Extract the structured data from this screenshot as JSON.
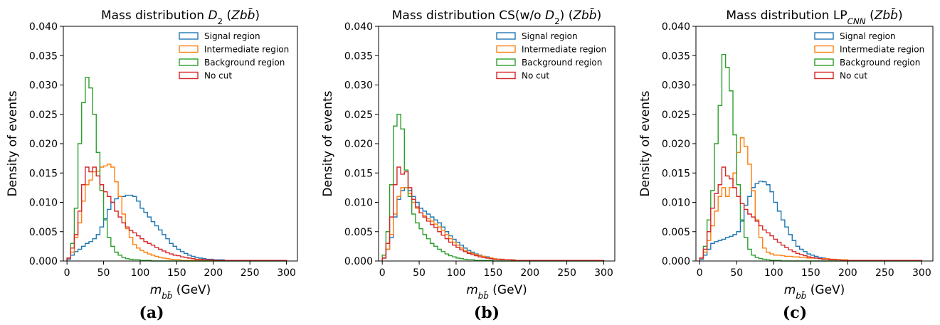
{
  "colors": {
    "signal": "#1f77b4",
    "intermediate": "#ff7f0e",
    "background": "#2ca02c",
    "nocut": "#d62728"
  },
  "chart_data": [
    {
      "type": "line",
      "title": "Mass distribution D₂ (Zbb̄)",
      "caption": "(a)",
      "xlabel": "m_bb̄ (GeV)",
      "ylabel": "Density of events",
      "xlim": [
        -5,
        315
      ],
      "ylim": [
        0,
        0.04
      ],
      "xticks": [
        "0",
        "50",
        "100",
        "150",
        "200",
        "250",
        "300"
      ],
      "yticks": [
        "0.000",
        "0.005",
        "0.010",
        "0.015",
        "0.020",
        "0.025",
        "0.030",
        "0.035",
        "0.040"
      ],
      "legend_position": "top-right",
      "grid": false,
      "bin_edges_start": 0,
      "bin_width": 5,
      "series": [
        {
          "name": "Signal region",
          "color_key": "signal",
          "values": [
            0.0003,
            0.001,
            0.0016,
            0.002,
            0.0025,
            0.003,
            0.0033,
            0.0038,
            0.0045,
            0.0058,
            0.0072,
            0.0088,
            0.01,
            0.0106,
            0.011,
            0.011,
            0.0112,
            0.0112,
            0.011,
            0.0102,
            0.009,
            0.0083,
            0.0075,
            0.0067,
            0.006,
            0.0053,
            0.0045,
            0.0038,
            0.003,
            0.0025,
            0.002,
            0.0016,
            0.0013,
            0.001,
            0.0008,
            0.0006,
            0.0005,
            0.0004,
            0.0003,
            0.0003,
            0.0002,
            0.0002,
            0.0002,
            0.0001,
            0.0001,
            0.0001,
            0.0001,
            0.0001,
            0.0001,
            0.0001,
            0.0001,
            0.0001,
            0.0001,
            0.0001,
            0.0001,
            0.0001,
            0.0001,
            0.0001,
            0.0001,
            0.0001
          ]
        },
        {
          "name": "Intermediate region",
          "color_key": "intermediate",
          "values": [
            0.0005,
            0.0015,
            0.004,
            0.0065,
            0.0102,
            0.013,
            0.0138,
            0.0152,
            0.0153,
            0.016,
            0.0162,
            0.0165,
            0.016,
            0.0135,
            0.011,
            0.008,
            0.0055,
            0.004,
            0.0028,
            0.0022,
            0.0018,
            0.0015,
            0.0012,
            0.001,
            0.0008,
            0.0006,
            0.0005,
            0.0004,
            0.0003,
            0.0002,
            0.0002,
            0.0001,
            0.0001,
            0.0001,
            0.0001,
            0.0001,
            0.0001,
            0.0001,
            0.0001,
            0.0001,
            0.0001,
            0.0001,
            0.0001,
            0.0001,
            0.0001,
            0.0001,
            0.0001,
            0.0001,
            0.0001,
            0.0001,
            0.0001,
            0.0001,
            0.0001,
            0.0001,
            0.0001,
            0.0001,
            0.0001,
            0.0001,
            0.0001,
            0.0001
          ]
        },
        {
          "name": "Background region",
          "color_key": "background",
          "values": [
            0.0005,
            0.003,
            0.009,
            0.02,
            0.027,
            0.0313,
            0.0295,
            0.025,
            0.0185,
            0.012,
            0.007,
            0.004,
            0.0025,
            0.0015,
            0.001,
            0.0006,
            0.0004,
            0.0003,
            0.0002,
            0.0002,
            0.0001,
            0.0001,
            0.0001,
            0,
            0,
            0,
            0,
            0,
            0,
            0,
            0,
            0,
            0,
            0,
            0,
            0,
            0,
            0,
            0,
            0,
            0,
            0,
            0,
            0,
            0,
            0,
            0,
            0,
            0,
            0,
            0,
            0,
            0,
            0,
            0,
            0,
            0,
            0,
            0,
            0
          ]
        },
        {
          "name": "No cut",
          "color_key": "nocut",
          "values": [
            0.0005,
            0.0022,
            0.0045,
            0.0085,
            0.013,
            0.016,
            0.0152,
            0.016,
            0.0145,
            0.013,
            0.0118,
            0.011,
            0.01,
            0.0085,
            0.0075,
            0.0065,
            0.0058,
            0.0052,
            0.0048,
            0.0043,
            0.0038,
            0.0033,
            0.003,
            0.0027,
            0.0023,
            0.002,
            0.0017,
            0.0014,
            0.0012,
            0.001,
            0.0009,
            0.0007,
            0.0006,
            0.0005,
            0.0004,
            0.0003,
            0.0003,
            0.0002,
            0.0002,
            0.0002,
            0.0001,
            0.0001,
            0.0001,
            0.0001,
            0.0001,
            0.0001,
            0.0001,
            0.0001,
            0.0001,
            0.0001,
            0.0001,
            0.0001,
            0.0001,
            0.0001,
            0.0001,
            0.0001,
            0.0001,
            0.0001,
            0.0001,
            0.0001
          ]
        }
      ]
    },
    {
      "type": "line",
      "title": "Mass distribution CS(w/o D₂) (Zbb̄)",
      "caption": "(b)",
      "xlabel": "m_bb̄ (GeV)",
      "ylabel": "Density of events",
      "xlim": [
        -5,
        315
      ],
      "ylim": [
        0,
        0.04
      ],
      "xticks": [
        "0",
        "50",
        "100",
        "150",
        "200",
        "250",
        "300"
      ],
      "yticks": [
        "0.000",
        "0.005",
        "0.010",
        "0.015",
        "0.020",
        "0.025",
        "0.030",
        "0.035",
        "0.040"
      ],
      "legend_position": "top-right",
      "grid": false,
      "bin_edges_start": 0,
      "bin_width": 5,
      "series": [
        {
          "name": "Signal region",
          "color_key": "signal",
          "values": [
            0.0005,
            0.002,
            0.004,
            0.0075,
            0.0105,
            0.012,
            0.0125,
            0.012,
            0.011,
            0.01,
            0.009,
            0.0085,
            0.008,
            0.0075,
            0.007,
            0.0065,
            0.0058,
            0.005,
            0.0043,
            0.0037,
            0.0032,
            0.0027,
            0.0022,
            0.0018,
            0.0015,
            0.0012,
            0.001,
            0.0008,
            0.0007,
            0.0005,
            0.0004,
            0.0003,
            0.0003,
            0.0002,
            0.0002,
            0.0002,
            0.0001,
            0.0001,
            0.0001,
            0.0001,
            0.0001,
            0.0001,
            0.0001,
            0.0001,
            0.0001,
            0.0001,
            0.0001,
            0.0001,
            0.0001,
            0.0001,
            0.0001,
            0.0001,
            0.0001,
            0.0001,
            0.0001,
            0.0001,
            0.0001,
            0.0001,
            0.0001,
            0.0001
          ]
        },
        {
          "name": "Intermediate region",
          "color_key": "intermediate",
          "values": [
            0.0005,
            0.002,
            0.0045,
            0.008,
            0.011,
            0.0125,
            0.0125,
            0.0115,
            0.01,
            0.009,
            0.0082,
            0.0077,
            0.0072,
            0.0068,
            0.0063,
            0.0058,
            0.0052,
            0.0045,
            0.0038,
            0.0032,
            0.0027,
            0.0022,
            0.0018,
            0.0015,
            0.0013,
            0.0011,
            0.0009,
            0.0008,
            0.0006,
            0.0005,
            0.0004,
            0.0003,
            0.0003,
            0.0002,
            0.0002,
            0.0002,
            0.0001,
            0.0001,
            0.0001,
            0.0001,
            0.0001,
            0.0001,
            0.0001,
            0.0001,
            0.0001,
            0.0001,
            0.0001,
            0.0001,
            0.0001,
            0.0001,
            0.0001,
            0.0001,
            0.0001,
            0.0001,
            0.0001,
            0.0001,
            0.0001,
            0.0001,
            0.0001,
            0.0001
          ]
        },
        {
          "name": "Background region",
          "color_key": "background",
          "values": [
            0.001,
            0.005,
            0.013,
            0.023,
            0.025,
            0.0225,
            0.0155,
            0.011,
            0.008,
            0.0065,
            0.0055,
            0.0045,
            0.0038,
            0.003,
            0.0025,
            0.002,
            0.0016,
            0.0012,
            0.0009,
            0.0007,
            0.0005,
            0.0004,
            0.0003,
            0.0002,
            0.0002,
            0.0001,
            0.0001,
            0.0001,
            0.0001,
            0.0001,
            0,
            0,
            0,
            0,
            0,
            0,
            0,
            0,
            0,
            0,
            0,
            0,
            0,
            0,
            0,
            0,
            0,
            0,
            0,
            0,
            0,
            0,
            0,
            0,
            0,
            0,
            0,
            0,
            0,
            0
          ]
        },
        {
          "name": "No cut",
          "color_key": "nocut",
          "values": [
            0.0005,
            0.003,
            0.0075,
            0.013,
            0.016,
            0.0148,
            0.0152,
            0.0125,
            0.0105,
            0.0092,
            0.0082,
            0.0075,
            0.0068,
            0.0062,
            0.0057,
            0.005,
            0.0044,
            0.0038,
            0.0032,
            0.0027,
            0.0023,
            0.0019,
            0.0016,
            0.0013,
            0.0011,
            0.0009,
            0.0007,
            0.0006,
            0.0005,
            0.0004,
            0.0003,
            0.0003,
            0.0002,
            0.0002,
            0.0002,
            0.0001,
            0.0001,
            0.0001,
            0.0001,
            0.0001,
            0.0001,
            0.0001,
            0.0001,
            0.0001,
            0.0001,
            0.0001,
            0.0001,
            0.0001,
            0.0001,
            0.0001,
            0.0001,
            0.0001,
            0.0001,
            0.0001,
            0.0001,
            0.0001,
            0.0001,
            0.0001,
            0.0001,
            0.0001
          ]
        }
      ]
    },
    {
      "type": "line",
      "title": "Mass distribution LP_CNN (Zbb̄)",
      "caption": "(c)",
      "xlabel": "m_bb̄ (GeV)",
      "ylabel": "Density of events",
      "xlim": [
        -5,
        315
      ],
      "ylim": [
        0,
        0.04
      ],
      "xticks": [
        "0",
        "50",
        "100",
        "150",
        "200",
        "250",
        "300"
      ],
      "yticks": [
        "0.000",
        "0.005",
        "0.010",
        "0.015",
        "0.020",
        "0.025",
        "0.030",
        "0.035",
        "0.040"
      ],
      "legend_position": "top-right",
      "grid": false,
      "bin_edges_start": 0,
      "bin_width": 5,
      "series": [
        {
          "name": "Signal region",
          "color_key": "signal",
          "values": [
            0.0003,
            0.001,
            0.002,
            0.003,
            0.0033,
            0.0035,
            0.0037,
            0.004,
            0.0042,
            0.0045,
            0.005,
            0.0068,
            0.0095,
            0.011,
            0.0125,
            0.0132,
            0.0136,
            0.0135,
            0.013,
            0.0118,
            0.01,
            0.0085,
            0.007,
            0.0058,
            0.0045,
            0.0035,
            0.0025,
            0.002,
            0.0016,
            0.0012,
            0.001,
            0.0008,
            0.0006,
            0.0005,
            0.0004,
            0.0003,
            0.0002,
            0.0002,
            0.0002,
            0.0001,
            0.0001,
            0.0001,
            0.0001,
            0.0001,
            0.0001,
            0.0001,
            0.0001,
            0.0001,
            0.0001,
            0.0001,
            0.0001,
            0.0001,
            0.0001,
            0.0001,
            0.0001,
            0.0001,
            0.0001,
            0.0001,
            0.0001,
            0.0001
          ]
        },
        {
          "name": "Intermediate region",
          "color_key": "intermediate",
          "values": [
            0.0005,
            0.0015,
            0.0035,
            0.006,
            0.0085,
            0.011,
            0.0125,
            0.011,
            0.0125,
            0.015,
            0.0185,
            0.021,
            0.0195,
            0.0165,
            0.012,
            0.007,
            0.004,
            0.0022,
            0.0015,
            0.0012,
            0.001,
            0.001,
            0.0009,
            0.0008,
            0.0008,
            0.0007,
            0.0007,
            0.0006,
            0.0006,
            0.0005,
            0.0005,
            0.0005,
            0.0004,
            0.0004,
            0.0004,
            0.0003,
            0.0003,
            0.0002,
            0.0002,
            0.0002,
            0.0001,
            0.0001,
            0.0001,
            0.0001,
            0.0001,
            0.0001,
            0.0001,
            0.0001,
            0.0001,
            0.0001,
            0.0001,
            0.0001,
            0.0001,
            0.0001,
            0.0001,
            0.0001,
            0.0001,
            0.0001,
            0.0001,
            0.0001
          ]
        },
        {
          "name": "Background region",
          "color_key": "background",
          "values": [
            0.0005,
            0.0025,
            0.007,
            0.012,
            0.02,
            0.0265,
            0.0352,
            0.033,
            0.029,
            0.0215,
            0.013,
            0.007,
            0.004,
            0.002,
            0.001,
            0.0006,
            0.0004,
            0.0003,
            0.0002,
            0.0001,
            0.0001,
            0.0001,
            0,
            0,
            0,
            0,
            0,
            0,
            0,
            0,
            0,
            0,
            0,
            0,
            0,
            0,
            0,
            0,
            0,
            0,
            0,
            0,
            0,
            0,
            0,
            0,
            0,
            0,
            0,
            0,
            0,
            0,
            0,
            0,
            0,
            0,
            0,
            0,
            0,
            0
          ]
        },
        {
          "name": "No cut",
          "color_key": "nocut",
          "values": [
            0.0005,
            0.002,
            0.005,
            0.009,
            0.0115,
            0.013,
            0.016,
            0.0145,
            0.014,
            0.0125,
            0.011,
            0.0098,
            0.0088,
            0.008,
            0.0075,
            0.0068,
            0.006,
            0.0053,
            0.0048,
            0.0043,
            0.0037,
            0.0032,
            0.0027,
            0.0023,
            0.0019,
            0.0016,
            0.0013,
            0.0011,
            0.0009,
            0.0007,
            0.0006,
            0.0005,
            0.0004,
            0.0003,
            0.0003,
            0.0002,
            0.0002,
            0.0002,
            0.0001,
            0.0001,
            0.0001,
            0.0001,
            0.0001,
            0.0001,
            0.0001,
            0.0001,
            0.0001,
            0.0001,
            0.0001,
            0.0001,
            0.0001,
            0.0001,
            0.0001,
            0.0001,
            0.0001,
            0.0001,
            0.0001,
            0.0001,
            0.0001,
            0.0001
          ]
        }
      ]
    }
  ]
}
